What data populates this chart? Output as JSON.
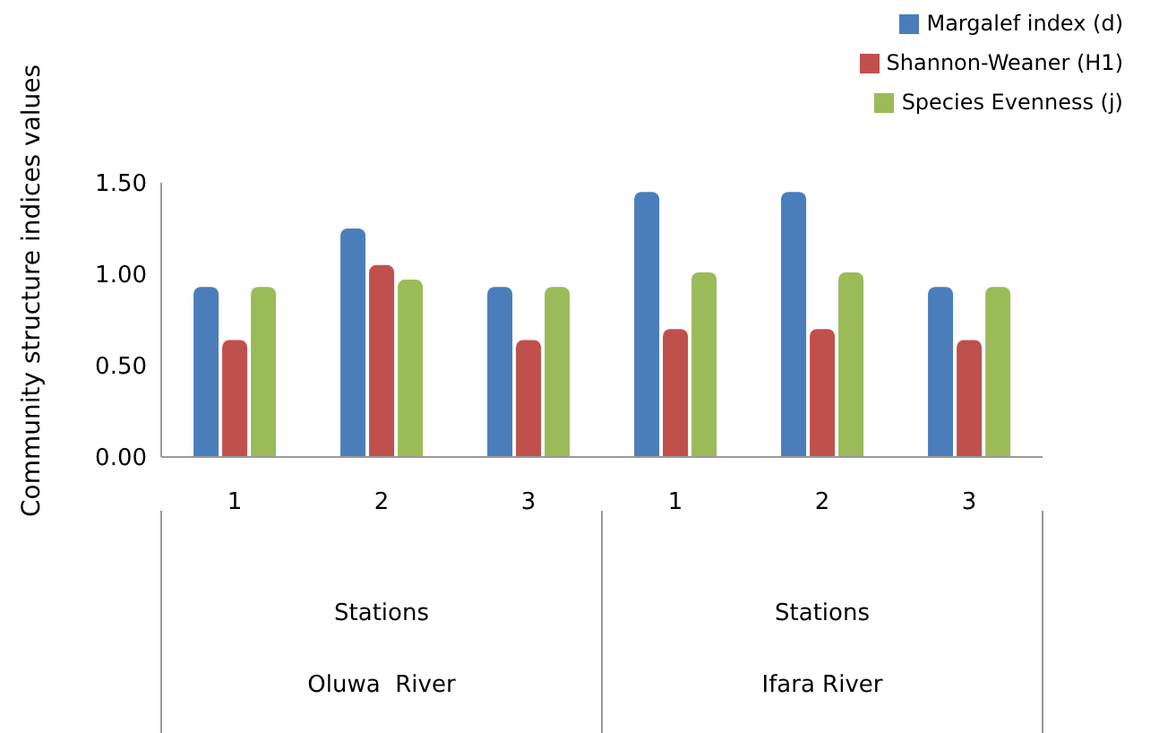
{
  "chart_data": {
    "type": "bar",
    "ylabel": "Community structure indices values",
    "categories": [
      "1",
      "2",
      "3",
      "1",
      "2",
      "3"
    ],
    "series": [
      {
        "name": "Margalef index (d)",
        "color": "#4a7ebb",
        "values": [
          0.93,
          1.25,
          0.93,
          1.45,
          1.45,
          0.93
        ]
      },
      {
        "name": "Shannon-Weaner (H1)",
        "color": "#c0504d",
        "values": [
          0.64,
          1.05,
          0.64,
          0.7,
          0.7,
          0.64
        ]
      },
      {
        "name": "Species Evenness (j)",
        "color": "#9bbb59",
        "values": [
          0.93,
          0.97,
          0.93,
          1.01,
          1.01,
          0.93
        ]
      }
    ],
    "ylim": [
      0,
      1.5
    ],
    "yticks": [
      {
        "value": 0,
        "label": "0.00"
      },
      {
        "value": 0.5,
        "label": "0.50"
      },
      {
        "value": 1,
        "label": "1.00"
      },
      {
        "value": 1.5,
        "label": "1.50"
      }
    ],
    "annotations": [
      "Stations",
      "Stations",
      "Oluwa  River",
      "Ifara River"
    ],
    "legend": "top right",
    "grid": false
  }
}
